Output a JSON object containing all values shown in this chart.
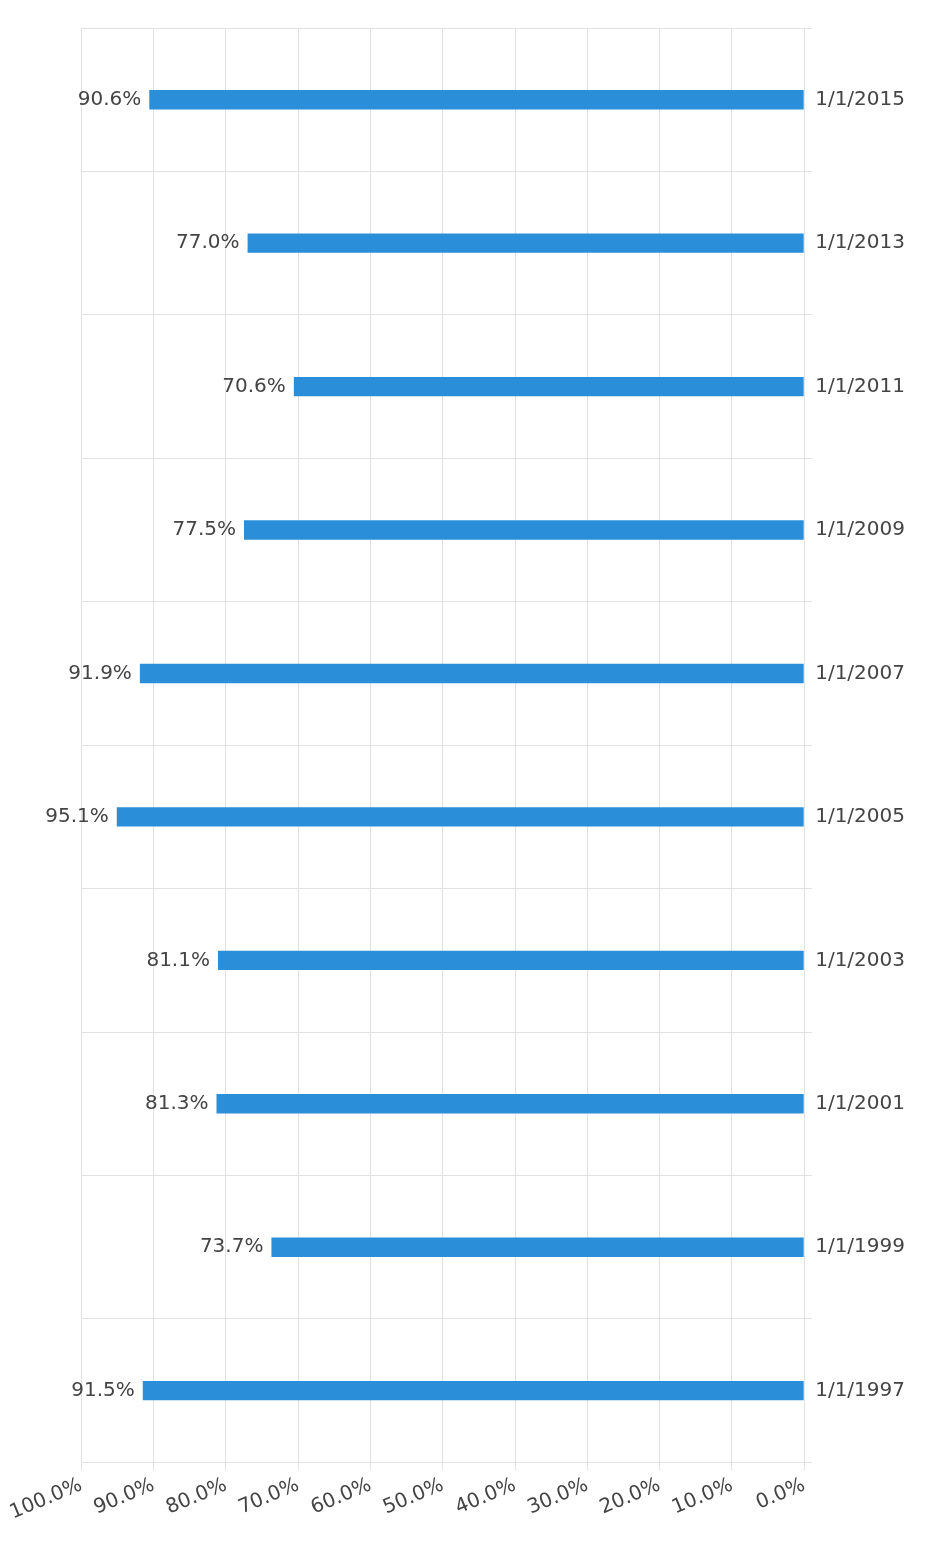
{
  "chart_data": {
    "type": "bar",
    "orientation": "horizontal",
    "categories": [
      "1/1/2015",
      "1/1/2013",
      "1/1/2011",
      "1/1/2009",
      "1/1/2007",
      "1/1/2005",
      "1/1/2003",
      "1/1/2001",
      "1/1/1999",
      "1/1/1997"
    ],
    "values": [
      90.6,
      77.0,
      70.6,
      77.5,
      91.9,
      95.1,
      81.1,
      81.3,
      73.7,
      91.5
    ],
    "value_labels": [
      "90.6%",
      "77.0%",
      "70.6%",
      "77.5%",
      "91.9%",
      "95.1%",
      "81.1%",
      "81.3%",
      "73.7%",
      "91.5%"
    ],
    "color": "#2a8fd8",
    "xlim": [
      100,
      0
    ],
    "xticks": [
      {
        "value": 100,
        "label": "100.0%"
      },
      {
        "value": 90,
        "label": "90.0%"
      },
      {
        "value": 80,
        "label": "80.0%"
      },
      {
        "value": 70,
        "label": "70.0%"
      },
      {
        "value": 60,
        "label": "60.0%"
      },
      {
        "value": 50,
        "label": "50.0%"
      },
      {
        "value": 40,
        "label": "40.0%"
      },
      {
        "value": 30,
        "label": "30.0%"
      },
      {
        "value": 20,
        "label": "20.0%"
      },
      {
        "value": 10,
        "label": "10.0%"
      },
      {
        "value": 0,
        "label": "0.0%"
      }
    ],
    "grid": true,
    "legend": false
  }
}
